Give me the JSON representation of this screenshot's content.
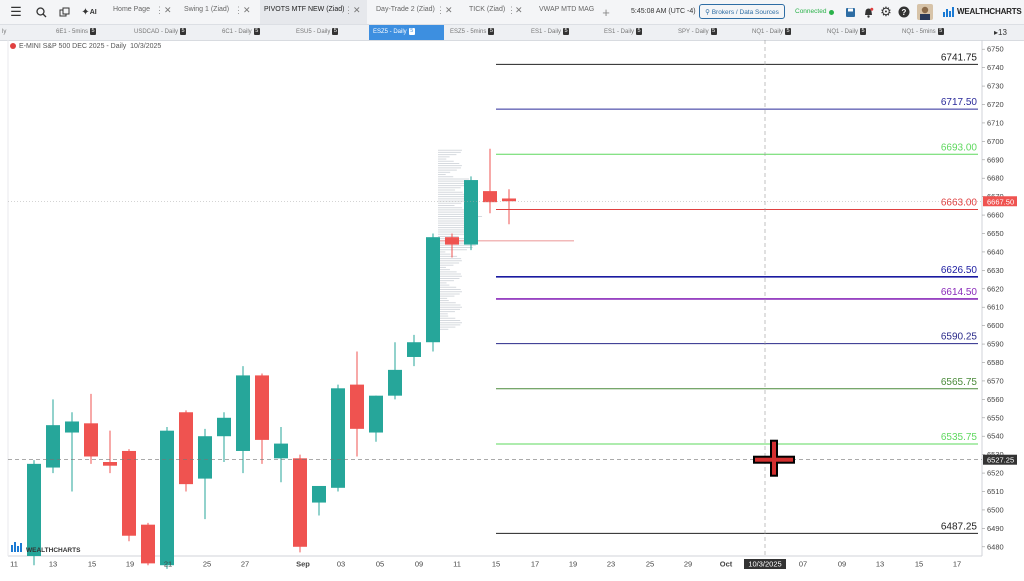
{
  "topbar": {
    "tabs": [
      {
        "label": "Home Page",
        "active": false
      },
      {
        "label": "Swing 1 (Ziad)",
        "active": false
      },
      {
        "label": "PIVOTS MTF NEW (Ziad)",
        "active": true
      },
      {
        "label": "Day-Trade 2 (Ziad)",
        "active": false
      },
      {
        "label": "TICK (Ziad)",
        "active": false
      },
      {
        "label": "VWAP MTD MAG",
        "active": false
      }
    ],
    "clock": "5:45:08 AM  (UTC -4)",
    "brokers_label": "Brokers / Data Sources",
    "connection_status": "Connected",
    "logo_text": "WEALTHCHARTS",
    "ai_label": "AI"
  },
  "symbols": [
    {
      "label": "6E1 - 5mins",
      "badge": "5"
    },
    {
      "label": "USDCAD - Daily",
      "badge": "5"
    },
    {
      "label": "6C1 - Daily",
      "badge": "5"
    },
    {
      "label": "ESU5 - Daily",
      "badge": "5"
    },
    {
      "label": "ESZ5 - Daily",
      "badge": "5",
      "active": true
    },
    {
      "label": "ESZ5 - 5mins",
      "badge": "5"
    },
    {
      "label": "ES1 - Daily",
      "badge": "5"
    },
    {
      "label": "ES1 - Daily",
      "badge": "5"
    },
    {
      "label": "SPY - Daily",
      "badge": "5"
    },
    {
      "label": "NQ1 - Daily",
      "badge": "5"
    },
    {
      "label": "NQ1 - Daily",
      "badge": "5"
    },
    {
      "label": "NQ1 - 5mins",
      "badge": "5"
    }
  ],
  "symbols_more": "13",
  "chart": {
    "title": "E-MINI S&P 500 DEC 2025 - Daily",
    "date": "10/3/2025",
    "watermark": "WEALTHCHARTS"
  },
  "chart_data": {
    "type": "candlestick",
    "instrument": "E-MINI S&P 500 DEC 2025",
    "interval": "Daily",
    "ylim": [
      6475,
      6755
    ],
    "y_ticks": [
      6480,
      6490,
      6500,
      6510,
      6520,
      6530,
      6540,
      6550,
      6560,
      6570,
      6580,
      6590,
      6600,
      6610,
      6620,
      6630,
      6640,
      6650,
      6660,
      6670,
      6680,
      6690,
      6700,
      6710,
      6720,
      6730,
      6740,
      6750
    ],
    "x_ticks": [
      "11",
      "13",
      "15",
      "19",
      "21",
      "25",
      "27",
      "Sep",
      "03",
      "05",
      "09",
      "11",
      "15",
      "17",
      "19",
      "23",
      "25",
      "29",
      "Oct",
      "10/3/2025",
      "07",
      "09",
      "13",
      "15",
      "17"
    ],
    "candles": [
      {
        "o": 6475,
        "h": 6527,
        "l": 6470,
        "c": 6525
      },
      {
        "o": 6523,
        "h": 6560,
        "l": 6520,
        "c": 6546
      },
      {
        "o": 6542,
        "h": 6553,
        "l": 6510,
        "c": 6548
      },
      {
        "o": 6547,
        "h": 6563,
        "l": 6525,
        "c": 6529
      },
      {
        "o": 6526,
        "h": 6543,
        "l": 6520,
        "c": 6524
      },
      {
        "o": 6532,
        "h": 6533,
        "l": 6483,
        "c": 6486
      },
      {
        "o": 6492,
        "h": 6493,
        "l": 6470,
        "c": 6471
      },
      {
        "o": 6470,
        "h": 6545,
        "l": 6468,
        "c": 6543
      },
      {
        "o": 6553,
        "h": 6554,
        "l": 6510,
        "c": 6514
      },
      {
        "o": 6517,
        "h": 6544,
        "l": 6495,
        "c": 6540
      },
      {
        "o": 6540,
        "h": 6553,
        "l": 6526,
        "c": 6550
      },
      {
        "o": 6532,
        "h": 6578,
        "l": 6520,
        "c": 6573
      },
      {
        "o": 6573,
        "h": 6574,
        "l": 6525,
        "c": 6538
      },
      {
        "o": 6528,
        "h": 6545,
        "l": 6515,
        "c": 6536
      },
      {
        "o": 6528,
        "h": 6530,
        "l": 6477,
        "c": 6480
      },
      {
        "o": 6504,
        "h": 6513,
        "l": 6497,
        "c": 6513
      },
      {
        "o": 6512,
        "h": 6568,
        "l": 6510,
        "c": 6566
      },
      {
        "o": 6568,
        "h": 6586,
        "l": 6529,
        "c": 6544
      },
      {
        "o": 6542,
        "h": 6562,
        "l": 6537,
        "c": 6562
      },
      {
        "o": 6562,
        "h": 6591,
        "l": 6560,
        "c": 6576
      },
      {
        "o": 6583,
        "h": 6595,
        "l": 6578,
        "c": 6591
      },
      {
        "o": 6591,
        "h": 6650,
        "l": 6586,
        "c": 6648
      },
      {
        "o": 6648,
        "h": 6650,
        "l": 6637,
        "c": 6644
      },
      {
        "o": 6644,
        "h": 6681,
        "l": 6641,
        "c": 6679
      },
      {
        "o": 6673,
        "h": 6696,
        "l": 6661,
        "c": 6667
      },
      {
        "o": 6669,
        "h": 6674,
        "l": 6655,
        "c": 6667.5
      }
    ],
    "pivot_levels": [
      {
        "label": "6741.75",
        "value": 6741.75,
        "color": "#222222"
      },
      {
        "label": "6717.50",
        "value": 6717.5,
        "color": "#2a2a9a"
      },
      {
        "label": "6693.00",
        "value": 6693,
        "color": "#5ed85e"
      },
      {
        "label": "6663.00",
        "value": 6663,
        "color": "#e04040"
      },
      {
        "label": "6626.50",
        "value": 6626.5,
        "color": "#1a1aa0"
      },
      {
        "label": "6614.50",
        "value": 6614.5,
        "color": "#8a2aba"
      },
      {
        "label": "6590.25",
        "value": 6590.25,
        "color": "#2a2a8a"
      },
      {
        "label": "6565.75",
        "value": 6565.75,
        "color": "#4a8a3a"
      },
      {
        "label": "6535.75",
        "value": 6535.75,
        "color": "#5ed85e"
      },
      {
        "label": "6487.25",
        "value": 6487.25,
        "color": "#222222"
      }
    ],
    "last_price": "6667.50",
    "crosshair_price": "6527.25",
    "crosshair_date": "10/3/2025",
    "up_color": "#26a69a",
    "down_color": "#ef5350"
  }
}
